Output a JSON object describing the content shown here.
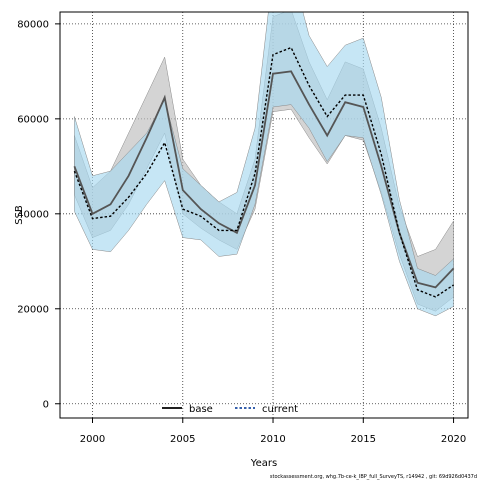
{
  "chart_data": {
    "type": "line",
    "xlabel": "Years",
    "ylabel": "SSB",
    "xlim": [
      1998.2,
      2020.8
    ],
    "ylim": [
      -3000,
      82500
    ],
    "xticks": [
      2000,
      2005,
      2010,
      2015,
      2020
    ],
    "yticks": [
      0,
      20000,
      40000,
      60000,
      80000
    ],
    "grid": true,
    "legend_position": "bottom-center",
    "x": [
      1999,
      2000,
      2001,
      2002,
      2003,
      2004,
      2005,
      2006,
      2007,
      2008,
      2009,
      2010,
      2011,
      2012,
      2013,
      2014,
      2015,
      2016,
      2017,
      2018,
      2019,
      2020
    ],
    "series": [
      {
        "name": "base",
        "color": "#000000",
        "band_color": "#bdbdbd",
        "line_style": "solid",
        "values": [
          50000,
          40000,
          42000,
          48000,
          56000,
          64500,
          45000,
          41000,
          38000,
          36000,
          46000,
          69500,
          70000,
          63000,
          56500,
          63500,
          62500,
          50000,
          36000,
          25500,
          24500,
          28500
        ],
        "lower": [
          44000,
          35000,
          36500,
          42000,
          49500,
          57000,
          40000,
          37000,
          34500,
          32500,
          41000,
          61500,
          62000,
          56000,
          50500,
          56500,
          55500,
          44500,
          31500,
          21000,
          19500,
          22500
        ],
        "upper": [
          56500,
          45500,
          49000,
          57000,
          65000,
          73000,
          51500,
          46000,
          42500,
          40000,
          51500,
          81500,
          83000,
          72000,
          64000,
          72000,
          70500,
          58000,
          41500,
          31000,
          32500,
          38500
        ]
      },
      {
        "name": "current",
        "color": "#1a4aa0",
        "band_color": "#a8d8f0",
        "line_style": "dashed",
        "values": [
          49000,
          39000,
          39500,
          43500,
          48500,
          55000,
          41000,
          39500,
          36500,
          36500,
          48500,
          73500,
          75000,
          67000,
          60500,
          65000,
          65000,
          52500,
          36000,
          24000,
          22500,
          25000
        ],
        "lower": [
          40500,
          32500,
          32000,
          36500,
          42000,
          47000,
          35000,
          34500,
          31000,
          31500,
          42000,
          62500,
          63000,
          58000,
          51000,
          56500,
          56000,
          44000,
          30000,
          20000,
          18500,
          20500
        ],
        "upper": [
          60500,
          48000,
          49000,
          53000,
          57000,
          64000,
          49500,
          46000,
          42500,
          44500,
          58000,
          91000,
          92000,
          77500,
          71000,
          75500,
          77000,
          64500,
          43000,
          28500,
          27000,
          30500
        ]
      }
    ],
    "footer": "stockassessment.org, whg.7b-ce-k_IBP_full_SurveyTS, r14942 , git: 69d926d0437d"
  }
}
